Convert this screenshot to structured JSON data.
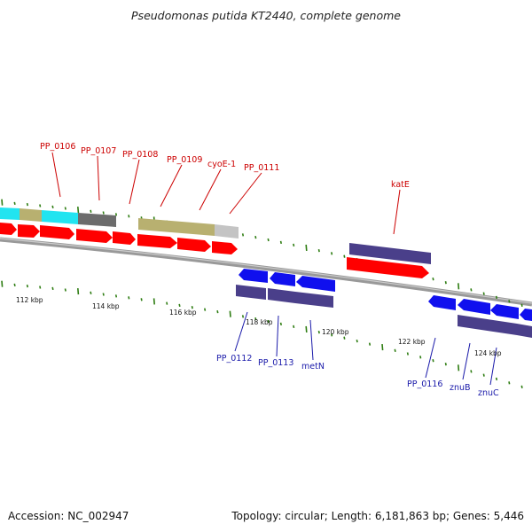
{
  "title": "Pseudomonas putida KT2440, complete genome",
  "footer": {
    "accession": "Accession: NC_002947",
    "summary": "Topology: circular; Length: 6,181,863 bp; Genes: 5,446"
  },
  "colors": {
    "forward_label": "#cc0000",
    "reverse_label": "#1a1aaa",
    "tick": "#2e7d12",
    "backbone": "#888888",
    "cds": "#ff0000",
    "cds_blue": "#1010ee",
    "gene_purple": "#4a3f8a"
  },
  "tick_labels": [
    "112 kbp",
    "114 kbp",
    "116 kbp",
    "118 kbp",
    "120 kbp",
    "122 kbp",
    "124 kbp"
  ],
  "forward_labels": [
    "PP_0106",
    "PP_0107",
    "PP_0108",
    "PP_0109",
    "cyoE-1",
    "PP_0111",
    "katE"
  ],
  "reverse_labels": [
    "PP_0112",
    "PP_0113",
    "metN",
    "PP_0116",
    "znuB",
    "znuC"
  ]
}
